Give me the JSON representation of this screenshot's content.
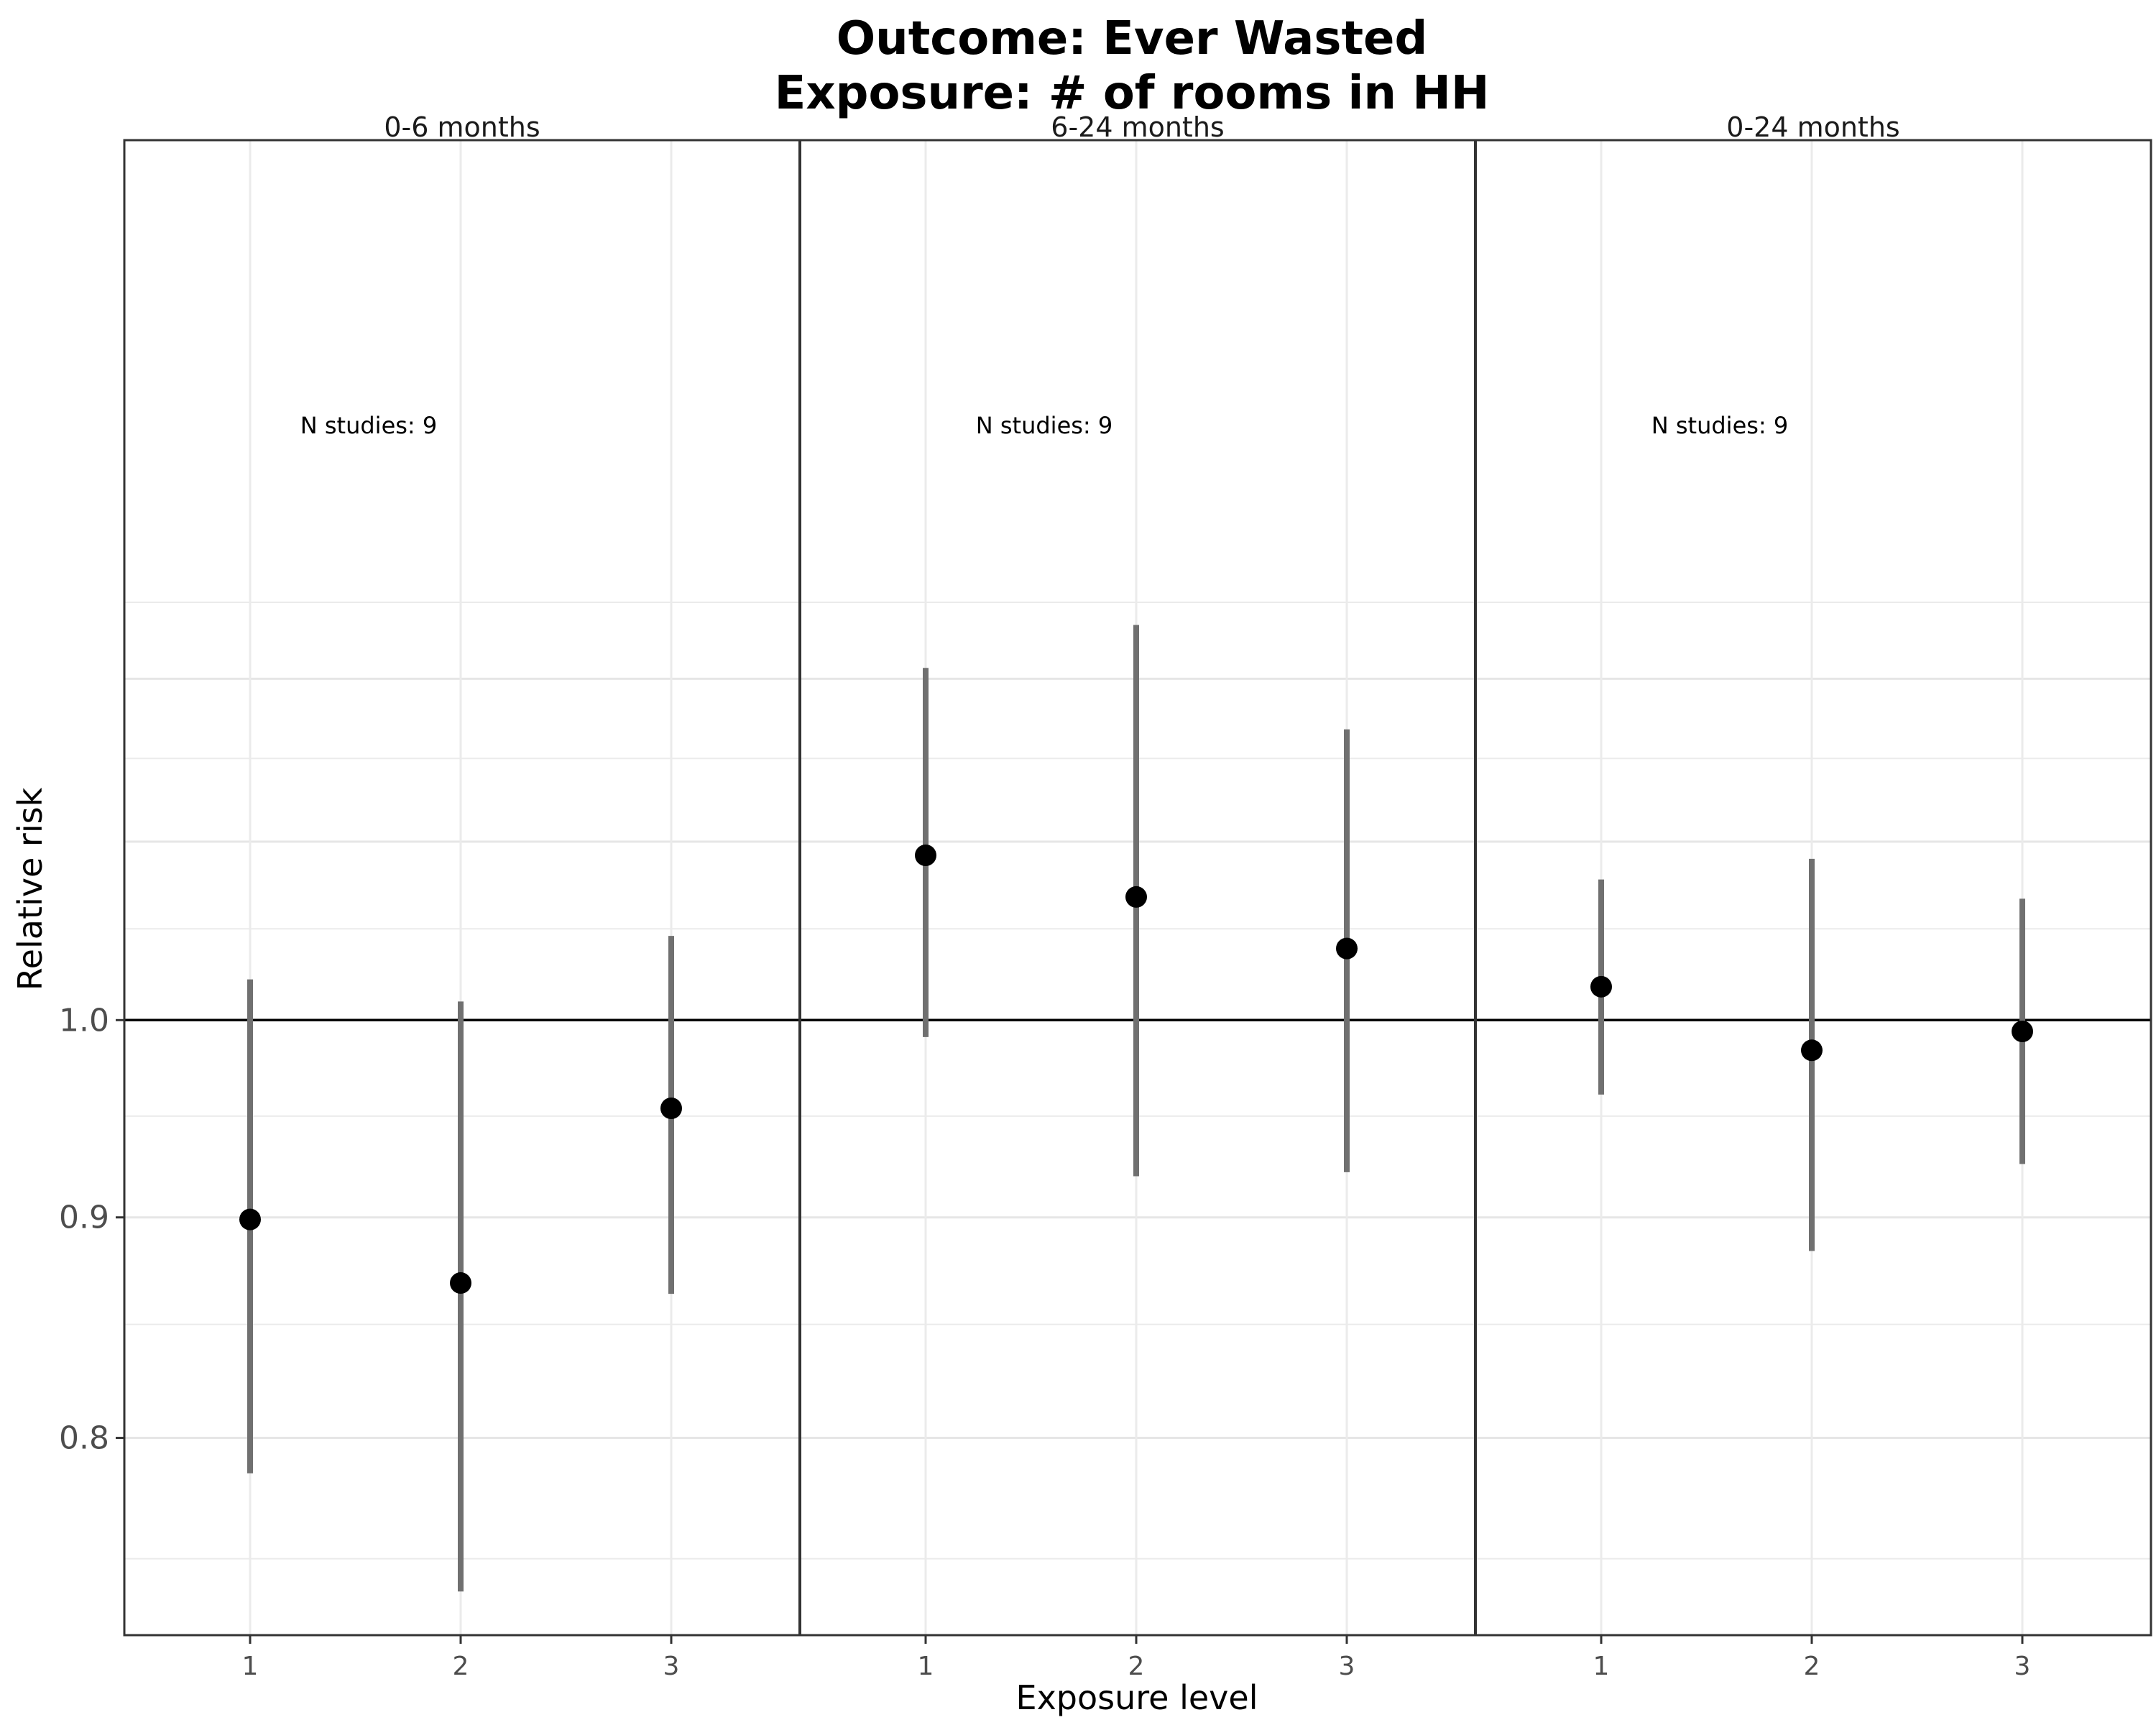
{
  "chart_data": {
    "type": "scatter",
    "title_lines": [
      "Outcome: Ever Wasted",
      "Exposure: # of rooms in HH"
    ],
    "xlabel": "Exposure level",
    "ylabel": "Relative risk",
    "y_scale": "log",
    "ylim": [
      0.72,
      1.6
    ],
    "yticks": [
      0.8,
      0.9,
      1.0
    ],
    "ytick_labels": [
      "0.8",
      "0.9",
      "1.0"
    ],
    "reference_line": 1.0,
    "grid": true,
    "categories": [
      "1",
      "2",
      "3"
    ],
    "panels": [
      {
        "label": "0-6 months",
        "annotation": "N studies: 9",
        "points": [
          {
            "x": "1",
            "rr": 0.899,
            "lower": 0.785,
            "upper": 1.022
          },
          {
            "x": "2",
            "rr": 0.869,
            "lower": 0.737,
            "upper": 1.01
          },
          {
            "x": "3",
            "rr": 0.954,
            "lower": 0.864,
            "upper": 1.046
          }
        ]
      },
      {
        "label": "6-24 months",
        "annotation": "N studies: 9",
        "points": [
          {
            "x": "1",
            "rr": 1.092,
            "lower": 0.991,
            "upper": 1.207
          },
          {
            "x": "2",
            "rr": 1.068,
            "lower": 0.92,
            "upper": 1.235
          },
          {
            "x": "3",
            "rr": 1.039,
            "lower": 0.922,
            "upper": 1.168
          }
        ]
      },
      {
        "label": "0-24 months",
        "annotation": "N studies: 9",
        "points": [
          {
            "x": "1",
            "rr": 1.018,
            "lower": 0.961,
            "upper": 1.078
          },
          {
            "x": "2",
            "rr": 0.984,
            "lower": 0.884,
            "upper": 1.09
          },
          {
            "x": "3",
            "rr": 0.994,
            "lower": 0.926,
            "upper": 1.067
          }
        ]
      }
    ]
  }
}
